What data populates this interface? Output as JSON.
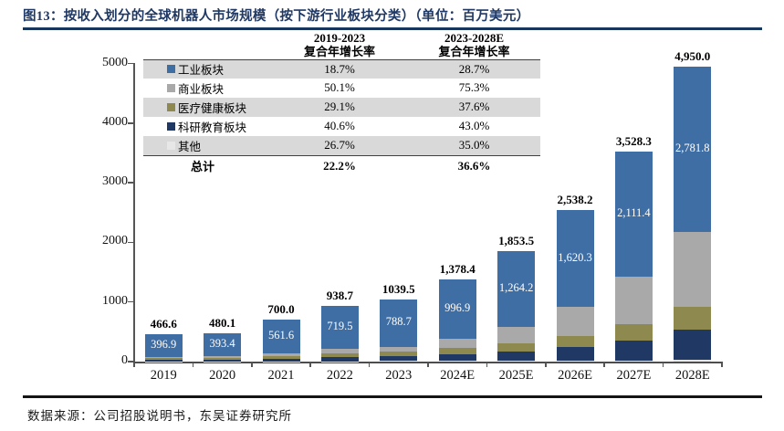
{
  "header": {
    "title": "图13：按收入划分的全球机器人市场规模（按下游行业板块分类）（单位：百万美元）"
  },
  "footer": {
    "source": "数据来源：公司招股说明书，东吴证券研究所"
  },
  "colors": {
    "industrial": "#3F6EA5",
    "commercial": "#A9A9A9",
    "medical": "#8E8A4F",
    "research": "#1F3864",
    "other": "#E7E7E7",
    "title_navy": "#1F3864"
  },
  "legend_table": {
    "col_headers": [
      {
        "line1": "2019-2023",
        "line2": "复合年增长率"
      },
      {
        "line1": "2023-2028E",
        "line2": "复合年增长率"
      }
    ],
    "rows": [
      {
        "label": "工业板块",
        "color": "#3F6EA5",
        "cagr_19_23": "18.7%",
        "cagr_23_28": "28.7%"
      },
      {
        "label": "商业板块",
        "color": "#A9A9A9",
        "cagr_19_23": "50.1%",
        "cagr_23_28": "75.3%"
      },
      {
        "label": "医疗健康板块",
        "color": "#8E8A4F",
        "cagr_19_23": "29.1%",
        "cagr_23_28": "37.6%"
      },
      {
        "label": "科研教育板块",
        "color": "#1F3864",
        "cagr_19_23": "40.6%",
        "cagr_23_28": "43.0%"
      },
      {
        "label": "其他",
        "color": "#E7E7E7",
        "cagr_19_23": "26.7%",
        "cagr_23_28": "35.0%"
      }
    ],
    "total_row": {
      "label": "总计",
      "cagr_19_23": "22.2%",
      "cagr_23_28": "36.6%"
    }
  },
  "chart_data": {
    "type": "bar",
    "stacked": true,
    "title": "按收入划分的全球机器人市场规模（按下游行业板块分类）",
    "unit": "百万美元",
    "grid": false,
    "legend_position": "table-top-left",
    "ylim": [
      0,
      5000
    ],
    "yticks": [
      0,
      1000,
      2000,
      3000,
      4000,
      5000
    ],
    "categories": [
      "2019",
      "2020",
      "2021",
      "2022",
      "2023",
      "2024E",
      "2025E",
      "2026E",
      "2027E",
      "2028E"
    ],
    "series_note": "series listed bottom-to-top in the stack; 工业板块/科研教育板块 labels and totals are printed on the chart, other segment values are estimated from pixel heights",
    "series": [
      {
        "name": "其他",
        "color": "#E7E7E7",
        "values": [
          3,
          3.5,
          4.5,
          6.2,
          8,
          12,
          15,
          18,
          22,
          28
        ]
      },
      {
        "name": "科研教育板块",
        "color": "#1F3864",
        "values": [
          24,
          30,
          45,
          68,
          85,
          115,
          160,
          225,
          330,
          515
        ]
      },
      {
        "name": "医疗健康板块",
        "color": "#8E8A4F",
        "values": [
          27,
          31,
          45,
          65,
          72,
          100,
          135,
          185,
          278,
          378
        ]
      },
      {
        "name": "商业板块",
        "color": "#A9A9A9",
        "values": [
          15.7,
          22.2,
          43.9,
          80,
          85.8,
          154.5,
          279.3,
          489.9,
          786.9,
          1247.2
        ]
      },
      {
        "name": "工业板块",
        "color": "#3F6EA5",
        "values": [
          396.9,
          393.4,
          561.6,
          719.5,
          788.7,
          996.9,
          1264.2,
          1620.3,
          2111.4,
          2781.8
        ]
      }
    ],
    "totals": [
      466.6,
      480.1,
      700.0,
      938.7,
      1039.5,
      1378.4,
      1853.5,
      2538.2,
      3528.3,
      4950.0
    ],
    "bar_total_labels": [
      "466.6",
      "480.1",
      "700.0",
      "938.7",
      "1039.5",
      "1,378.4",
      "1,853.5",
      "2,538.2",
      "3,528.3",
      "4,950.0"
    ],
    "industrial_segment_labels": [
      "396.9",
      "393.4",
      "561.6",
      "719.5",
      "788.7",
      "996.9",
      "1,264.2",
      "1,620.3",
      "2,111.4",
      "2,781.8"
    ]
  }
}
